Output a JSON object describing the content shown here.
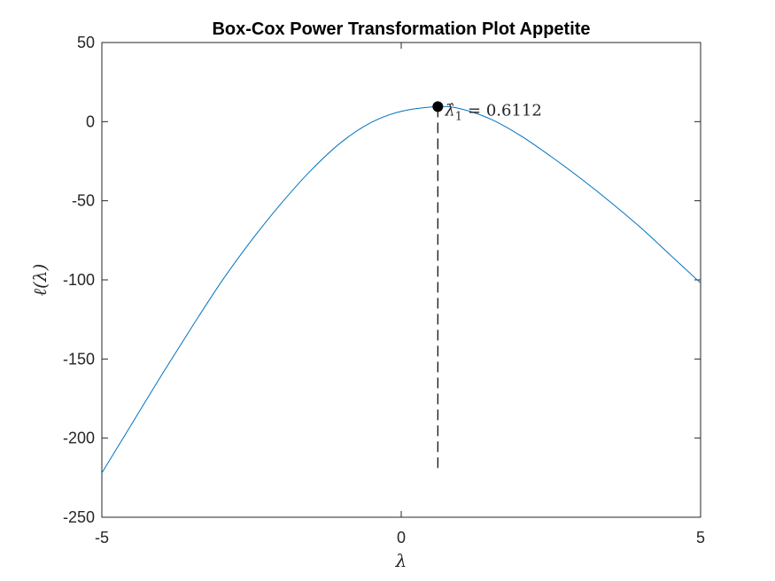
{
  "colors": {
    "curve": "#0072BD",
    "marker": "#000000",
    "axis": "#262626",
    "background": "#ffffff"
  },
  "chart_data": {
    "type": "line",
    "title": "Box-Cox Power Transformation Plot Appetite",
    "xlabel": "λ",
    "ylabel": "ℓ(λ)",
    "xlim": [
      -5,
      5
    ],
    "ylim": [
      -250,
      50
    ],
    "xticks": [
      -5,
      0,
      5
    ],
    "xtick_labels": [
      "-5",
      "0",
      "5"
    ],
    "yticks": [
      -250,
      -200,
      -150,
      -100,
      -50,
      0,
      50
    ],
    "ytick_labels": [
      "-250",
      "-200",
      "-150",
      "-100",
      "-50",
      "0",
      "50"
    ],
    "grid": false,
    "series": [
      {
        "x": [
          -5,
          -4.5,
          -4,
          -3.5,
          -3,
          -2.5,
          -2,
          -1.5,
          -1,
          -0.5,
          0,
          0.6112,
          1,
          1.5,
          2,
          2.5,
          3,
          3.5,
          4,
          4.5,
          5
        ],
        "y": [
          -222,
          -191,
          -160,
          -130,
          -101,
          -75,
          -51.5,
          -30.5,
          -13,
          -0.5,
          6.5,
          9.5,
          8,
          1.5,
          -9,
          -22,
          -36,
          -51,
          -67,
          -84.5,
          -102
        ]
      }
    ],
    "annotation": {
      "x": 0.6112,
      "y": 9.5,
      "label_symbol": "λ̂",
      "label_subscript": "1",
      "label_eq": "= 0.6112",
      "dashed_line_bottom": -222
    }
  }
}
